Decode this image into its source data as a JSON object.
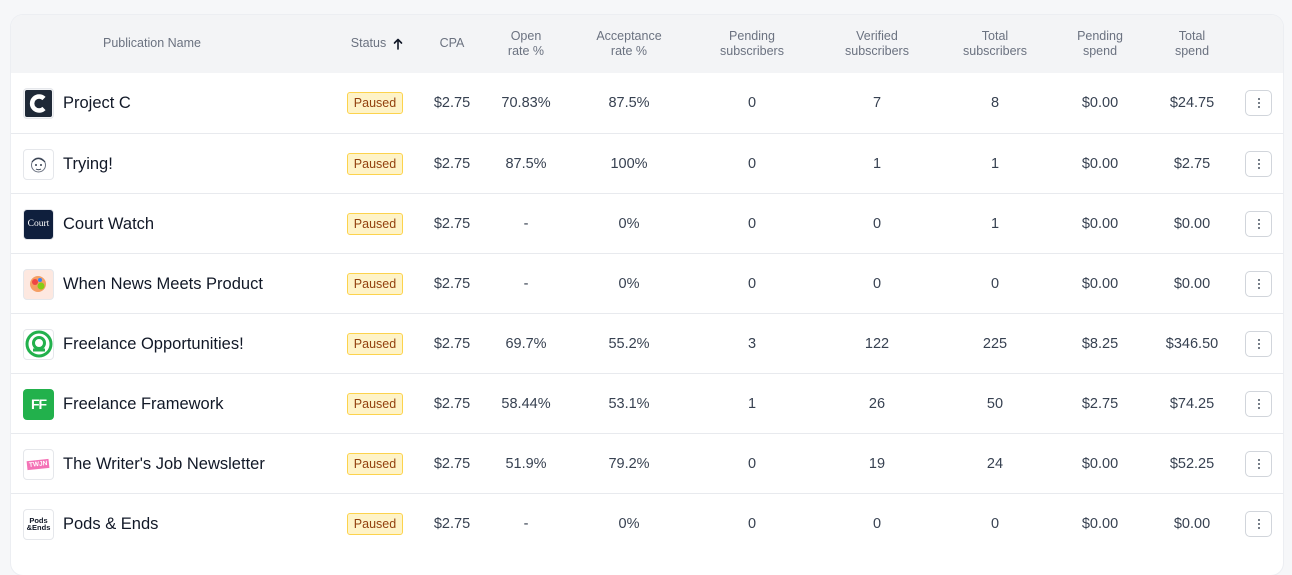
{
  "columns": {
    "name": "Publication Name",
    "status": "Status",
    "cpa": "CPA",
    "open_rate": "Open\nrate %",
    "acceptance": "Acceptance\nrate %",
    "pending_subs": "Pending\nsubscribers",
    "verified_subs": "Verified\nsubscribers",
    "total_subs": "Total\nsubscribers",
    "pending_spend": "Pending\nspend",
    "total_spend": "Total\nspend"
  },
  "sort": {
    "column": "status",
    "direction": "ascending",
    "icon": "arrow-up-icon"
  },
  "rows": [
    {
      "name": "Project C",
      "logo": "project-c-logo",
      "status": "Paused",
      "cpa": "$2.75",
      "open_rate": "70.83%",
      "acceptance": "87.5%",
      "pending_subs": "0",
      "verified_subs": "7",
      "total_subs": "8",
      "pending_spend": "$0.00",
      "total_spend": "$24.75"
    },
    {
      "name": "Trying!",
      "logo": "trying-logo",
      "status": "Paused",
      "cpa": "$2.75",
      "open_rate": "87.5%",
      "acceptance": "100%",
      "pending_subs": "0",
      "verified_subs": "1",
      "total_subs": "1",
      "pending_spend": "$0.00",
      "total_spend": "$2.75"
    },
    {
      "name": "Court Watch",
      "logo": "court-watch-logo",
      "logo_text": "Court",
      "status": "Paused",
      "cpa": "$2.75",
      "open_rate": "-",
      "acceptance": "0%",
      "pending_subs": "0",
      "verified_subs": "0",
      "total_subs": "1",
      "pending_spend": "$0.00",
      "total_spend": "$0.00"
    },
    {
      "name": "When News Meets Product",
      "logo": "when-news-logo",
      "status": "Paused",
      "cpa": "$2.75",
      "open_rate": "-",
      "acceptance": "0%",
      "pending_subs": "0",
      "verified_subs": "0",
      "total_subs": "0",
      "pending_spend": "$0.00",
      "total_spend": "$0.00"
    },
    {
      "name": "Freelance Opportunities!",
      "logo": "freelance-opportunities-logo",
      "status": "Paused",
      "cpa": "$2.75",
      "open_rate": "69.7%",
      "acceptance": "55.2%",
      "pending_subs": "3",
      "verified_subs": "122",
      "total_subs": "225",
      "pending_spend": "$8.25",
      "total_spend": "$346.50"
    },
    {
      "name": "Freelance Framework",
      "logo": "freelance-framework-logo",
      "logo_text": "FF",
      "status": "Paused",
      "cpa": "$2.75",
      "open_rate": "58.44%",
      "acceptance": "53.1%",
      "pending_subs": "1",
      "verified_subs": "26",
      "total_subs": "50",
      "pending_spend": "$2.75",
      "total_spend": "$74.25"
    },
    {
      "name": "The Writer's Job Newsletter",
      "logo": "writers-job-logo",
      "logo_text": "TWJN",
      "status": "Paused",
      "cpa": "$2.75",
      "open_rate": "51.9%",
      "acceptance": "79.2%",
      "pending_subs": "0",
      "verified_subs": "19",
      "total_subs": "24",
      "pending_spend": "$0.00",
      "total_spend": "$52.25"
    },
    {
      "name": "Pods & Ends",
      "logo": "pods-ends-logo",
      "logo_text": "Pods\n&Ends",
      "status": "Paused",
      "cpa": "$2.75",
      "open_rate": "-",
      "acceptance": "0%",
      "pending_subs": "0",
      "verified_subs": "0",
      "total_subs": "0",
      "pending_spend": "$0.00",
      "total_spend": "$0.00"
    }
  ],
  "colors": {
    "badge_bg": "#fef3c7",
    "badge_border": "#fcd34d",
    "badge_text": "#92400e",
    "header_bg": "#f3f4f6",
    "freelance_green": "#22b14c",
    "court_navy": "#0f1f3d"
  }
}
